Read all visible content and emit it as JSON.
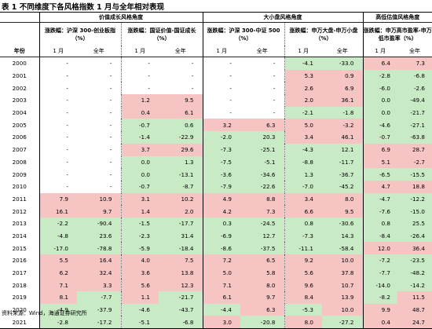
{
  "title": "表 1 不同维度下各风格指数 1 月与全年相对表现",
  "groups": [
    "价值成长风格角度",
    "大小盘风格角度",
    "高低估值风格角度"
  ],
  "subheaders": [
    "涨跌幅：沪深 300-创业板指（%）",
    "涨跌幅：国证价值-国证成长（%）",
    "涨跌幅：沪深 300-中证 500（%）",
    "涨跌幅：申万大盘-申万小盘（%）",
    "涨跌幅：申万高市盈率-申万低市盈率（%）"
  ],
  "year_label": "年份",
  "col_jan": "1 月",
  "col_full": "全年",
  "rows": [
    {
      "year": "2000",
      "c": [
        [
          "-",
          "-"
        ],
        [
          "-",
          "-"
        ],
        [
          "-",
          "-"
        ],
        [
          "-4.1",
          "-33.0"
        ],
        [
          "6.4",
          "7.3"
        ]
      ],
      "k": [
        [
          "",
          ""
        ],
        [
          "",
          ""
        ],
        [
          "",
          ""
        ],
        [
          "g",
          "g"
        ],
        [
          "r",
          "r"
        ]
      ]
    },
    {
      "year": "2001",
      "c": [
        [
          "-",
          "-"
        ],
        [
          "-",
          "-"
        ],
        [
          "-",
          "-"
        ],
        [
          "5.3",
          "0.9"
        ],
        [
          "-2.8",
          "-6.8"
        ]
      ],
      "k": [
        [
          "",
          ""
        ],
        [
          "",
          ""
        ],
        [
          "",
          ""
        ],
        [
          "r",
          "r"
        ],
        [
          "g",
          "g"
        ]
      ]
    },
    {
      "year": "2002",
      "c": [
        [
          "-",
          "-"
        ],
        [
          "-",
          "-"
        ],
        [
          "-",
          "-"
        ],
        [
          "2.6",
          "6.9"
        ],
        [
          "-6.0",
          "-2.6"
        ]
      ],
      "k": [
        [
          "",
          ""
        ],
        [
          "",
          ""
        ],
        [
          "",
          ""
        ],
        [
          "r",
          "r"
        ],
        [
          "g",
          "g"
        ]
      ]
    },
    {
      "year": "2003",
      "c": [
        [
          "-",
          "-"
        ],
        [
          "1.2",
          "9.5"
        ],
        [
          "-",
          "-"
        ],
        [
          "2.0",
          "36.1"
        ],
        [
          "0.0",
          "-49.4"
        ]
      ],
      "k": [
        [
          "",
          ""
        ],
        [
          "r",
          "r"
        ],
        [
          "",
          ""
        ],
        [
          "r",
          "r"
        ],
        [
          "g",
          "g"
        ]
      ]
    },
    {
      "year": "2004",
      "c": [
        [
          "-",
          "-"
        ],
        [
          "0.4",
          "6.1"
        ],
        [
          "-",
          "-"
        ],
        [
          "-2.1",
          "-1.8"
        ],
        [
          "0.0",
          "-21.7"
        ]
      ],
      "k": [
        [
          "",
          ""
        ],
        [
          "r",
          "r"
        ],
        [
          "",
          ""
        ],
        [
          "g",
          "g"
        ],
        [
          "g",
          "g"
        ]
      ]
    },
    {
      "year": "2005",
      "c": [
        [
          "-",
          "-"
        ],
        [
          "-0.7",
          "0.6"
        ],
        [
          "3.2",
          "6.3"
        ],
        [
          "5.0",
          "-3.2"
        ],
        [
          "-4.6",
          "-27.1"
        ]
      ],
      "k": [
        [
          "",
          ""
        ],
        [
          "g",
          "g"
        ],
        [
          "r",
          "r"
        ],
        [
          "r",
          "r"
        ],
        [
          "g",
          "g"
        ]
      ]
    },
    {
      "year": "2006",
      "c": [
        [
          "-",
          "-"
        ],
        [
          "-1.4",
          "-22.9"
        ],
        [
          "-2.0",
          "20.3"
        ],
        [
          "3.4",
          "46.1"
        ],
        [
          "-0.7",
          "-63.8"
        ]
      ],
      "k": [
        [
          "",
          ""
        ],
        [
          "g",
          "g"
        ],
        [
          "g",
          "g"
        ],
        [
          "r",
          "r"
        ],
        [
          "g",
          "g"
        ]
      ]
    },
    {
      "year": "2007",
      "c": [
        [
          "-",
          "-"
        ],
        [
          "3.7",
          "29.6"
        ],
        [
          "-7.3",
          "-25.1"
        ],
        [
          "-4.3",
          "12.1"
        ],
        [
          "6.9",
          "28.7"
        ]
      ],
      "k": [
        [
          "",
          ""
        ],
        [
          "r",
          "r"
        ],
        [
          "g",
          "g"
        ],
        [
          "g",
          "g"
        ],
        [
          "r",
          "r"
        ]
      ]
    },
    {
      "year": "2008",
      "c": [
        [
          "-",
          "-"
        ],
        [
          "0.0",
          "1.3"
        ],
        [
          "-7.5",
          "-5.1"
        ],
        [
          "-8.8",
          "-11.7"
        ],
        [
          "5.1",
          "-2.7"
        ]
      ],
      "k": [
        [
          "",
          ""
        ],
        [
          "g",
          "g"
        ],
        [
          "g",
          "g"
        ],
        [
          "g",
          "g"
        ],
        [
          "r",
          "r"
        ]
      ]
    },
    {
      "year": "2009",
      "c": [
        [
          "-",
          "-"
        ],
        [
          "0.0",
          "-13.1"
        ],
        [
          "-3.6",
          "-34.6"
        ],
        [
          "1.3",
          "-36.7"
        ],
        [
          "-6.5",
          "-15.5"
        ]
      ],
      "k": [
        [
          "",
          ""
        ],
        [
          "g",
          "g"
        ],
        [
          "g",
          "g"
        ],
        [
          "g",
          "g"
        ],
        [
          "g",
          "g"
        ]
      ]
    },
    {
      "year": "2010",
      "c": [
        [
          "-",
          "-"
        ],
        [
          "-0.7",
          "-8.7"
        ],
        [
          "-7.9",
          "-22.6"
        ],
        [
          "-7.0",
          "-45.2"
        ],
        [
          "4.7",
          "18.8"
        ]
      ],
      "k": [
        [
          "",
          ""
        ],
        [
          "g",
          "g"
        ],
        [
          "g",
          "g"
        ],
        [
          "g",
          "g"
        ],
        [
          "r",
          "r"
        ]
      ]
    },
    {
      "year": "2011",
      "c": [
        [
          "7.9",
          "10.9"
        ],
        [
          "3.1",
          "10.2"
        ],
        [
          "4.9",
          "8.8"
        ],
        [
          "3.4",
          "8.0"
        ],
        [
          "-4.7",
          "-12.2"
        ]
      ],
      "k": [
        [
          "r",
          "r"
        ],
        [
          "r",
          "r"
        ],
        [
          "r",
          "r"
        ],
        [
          "r",
          "r"
        ],
        [
          "g",
          "g"
        ]
      ]
    },
    {
      "year": "2012",
      "c": [
        [
          "16.1",
          "9.7"
        ],
        [
          "1.4",
          "2.0"
        ],
        [
          "4.2",
          "7.3"
        ],
        [
          "6.6",
          "9.5"
        ],
        [
          "-7.6",
          "-15.0"
        ]
      ],
      "k": [
        [
          "r",
          "r"
        ],
        [
          "r",
          "r"
        ],
        [
          "r",
          "r"
        ],
        [
          "r",
          "r"
        ],
        [
          "g",
          "g"
        ]
      ]
    },
    {
      "year": "2013",
      "c": [
        [
          "-2.2",
          "-90.4"
        ],
        [
          "-1.5",
          "-17.7"
        ],
        [
          "0.3",
          "-24.5"
        ],
        [
          "0.8",
          "-30.6"
        ],
        [
          "0.8",
          "25.5"
        ]
      ],
      "k": [
        [
          "g",
          "g"
        ],
        [
          "g",
          "g"
        ],
        [
          "g",
          "g"
        ],
        [
          "g",
          "g"
        ],
        [
          "g",
          "g"
        ]
      ]
    },
    {
      "year": "2014",
      "c": [
        [
          "-4.8",
          "23.6"
        ],
        [
          "-2.3",
          "31.4"
        ],
        [
          "-6.9",
          "12.7"
        ],
        [
          "-7.3",
          "14.3"
        ],
        [
          "-8.4",
          "-26.4"
        ]
      ],
      "k": [
        [
          "g",
          "g"
        ],
        [
          "g",
          "g"
        ],
        [
          "g",
          "g"
        ],
        [
          "g",
          "g"
        ],
        [
          "g",
          "g"
        ]
      ]
    },
    {
      "year": "2015",
      "c": [
        [
          "-17.0",
          "-78.8"
        ],
        [
          "-5.9",
          "-18.4"
        ],
        [
          "-8.6",
          "-37.5"
        ],
        [
          "-11.1",
          "-58.4"
        ],
        [
          "12.0",
          "36.4"
        ]
      ],
      "k": [
        [
          "g",
          "g"
        ],
        [
          "g",
          "g"
        ],
        [
          "g",
          "g"
        ],
        [
          "g",
          "g"
        ],
        [
          "r",
          "r"
        ]
      ]
    },
    {
      "year": "2016",
      "c": [
        [
          "5.5",
          "16.4"
        ],
        [
          "4.0",
          "7.5"
        ],
        [
          "7.2",
          "6.5"
        ],
        [
          "9.2",
          "10.0"
        ],
        [
          "-7.2",
          "-23.5"
        ]
      ],
      "k": [
        [
          "r",
          "r"
        ],
        [
          "r",
          "r"
        ],
        [
          "r",
          "r"
        ],
        [
          "r",
          "r"
        ],
        [
          "g",
          "g"
        ]
      ]
    },
    {
      "year": "2017",
      "c": [
        [
          "6.2",
          "32.4"
        ],
        [
          "3.6",
          "13.8"
        ],
        [
          "5.0",
          "5.8"
        ],
        [
          "5.6",
          "37.8"
        ],
        [
          "-7.7",
          "-48.2"
        ]
      ],
      "k": [
        [
          "r",
          "r"
        ],
        [
          "r",
          "r"
        ],
        [
          "r",
          "r"
        ],
        [
          "r",
          "r"
        ],
        [
          "g",
          "g"
        ]
      ]
    },
    {
      "year": "2018",
      "c": [
        [
          "7.1",
          "3.3"
        ],
        [
          "5.6",
          "12.3"
        ],
        [
          "7.1",
          "8.0"
        ],
        [
          "9.6",
          "10.7"
        ],
        [
          "-14.0",
          "-14.2"
        ]
      ],
      "k": [
        [
          "r",
          "r"
        ],
        [
          "r",
          "r"
        ],
        [
          "r",
          "r"
        ],
        [
          "r",
          "r"
        ],
        [
          "g",
          "g"
        ]
      ]
    },
    {
      "year": "2019",
      "c": [
        [
          "8.1",
          "-7.7"
        ],
        [
          "1.1",
          "-21.7"
        ],
        [
          "6.1",
          "9.7"
        ],
        [
          "8.4",
          "13.9"
        ],
        [
          "-8.2",
          "11.5"
        ]
      ],
      "k": [
        [
          "r",
          "g"
        ],
        [
          "r",
          "g"
        ],
        [
          "r",
          "r"
        ],
        [
          "r",
          "r"
        ],
        [
          "g",
          "r"
        ]
      ]
    },
    {
      "year": "2020",
      "c": [
        [
          "-4.9",
          "-37.9"
        ],
        [
          "-4.6",
          "-43.7"
        ],
        [
          "-4.4",
          "6.3"
        ],
        [
          "-5.3",
          "10.0"
        ],
        [
          "9.9",
          "48.7"
        ]
      ],
      "k": [
        [
          "g",
          "g"
        ],
        [
          "g",
          "g"
        ],
        [
          "g",
          "r"
        ],
        [
          "g",
          "r"
        ],
        [
          "r",
          "r"
        ]
      ]
    },
    {
      "year": "2021",
      "c": [
        [
          "-2.8",
          "-17.2"
        ],
        [
          "-5.1",
          "-6.8"
        ],
        [
          "3.0",
          "-20.8"
        ],
        [
          "8.0",
          "-27.2"
        ],
        [
          "0.4",
          "24.7"
        ]
      ],
      "k": [
        [
          "g",
          "g"
        ],
        [
          "g",
          "g"
        ],
        [
          "r",
          "g"
        ],
        [
          "r",
          "g"
        ],
        [
          "r",
          "r"
        ]
      ]
    }
  ],
  "source": "资料来源：Wind，海通证券研究所"
}
